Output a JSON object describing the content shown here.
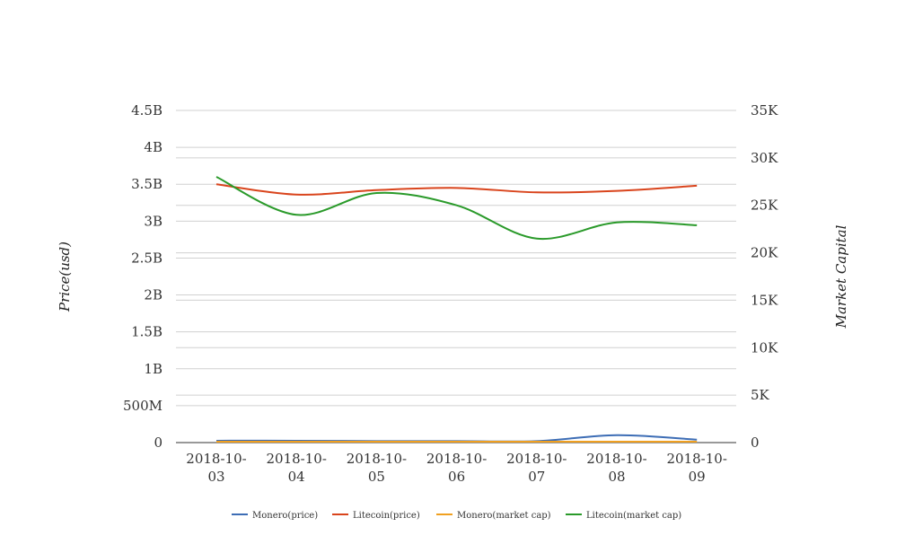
{
  "chart_data": {
    "type": "line",
    "title": "",
    "x": [
      "2018-10-03",
      "2018-10-04",
      "2018-10-05",
      "2018-10-06",
      "2018-10-07",
      "2018-10-08",
      "2018-10-09"
    ],
    "x_tick_lines": [
      [
        "2018-10-",
        "03"
      ],
      [
        "2018-10-",
        "04"
      ],
      [
        "2018-10-",
        "05"
      ],
      [
        "2018-10-",
        "06"
      ],
      [
        "2018-10-",
        "07"
      ],
      [
        "2018-10-",
        "08"
      ],
      [
        "2018-10-",
        "09"
      ]
    ],
    "y_left": {
      "label": "Price(usd)",
      "range": [
        0,
        4500000000
      ],
      "ticks": [
        0,
        500000000,
        1000000000,
        1500000000,
        2000000000,
        2500000000,
        3000000000,
        3500000000,
        4000000000,
        4500000000
      ],
      "tick_labels": [
        "0",
        "500M",
        "1B",
        "1.5B",
        "2B",
        "2.5B",
        "3B",
        "3.5B",
        "4B",
        "4.5B"
      ]
    },
    "y_right": {
      "label": "Market Capital",
      "range": [
        0,
        35000
      ],
      "ticks": [
        0,
        5000,
        10000,
        15000,
        20000,
        25000,
        30000,
        35000
      ],
      "tick_labels": [
        "0",
        "5K",
        "10K",
        "15K",
        "20K",
        "25K",
        "30K",
        "35K"
      ]
    },
    "series": [
      {
        "name": "Monero(price)",
        "axis": "left",
        "color": "#3d6db5",
        "values": [
          25000000,
          25000000,
          20000000,
          20000000,
          20000000,
          100000000,
          40000000
        ]
      },
      {
        "name": "Litecoin(price)",
        "axis": "left",
        "color": "#d9441c",
        "values": [
          3500000000,
          3360000000,
          3420000000,
          3450000000,
          3390000000,
          3410000000,
          3480000000
        ]
      },
      {
        "name": "Monero(market cap)",
        "axis": "right",
        "color": "#f0a020",
        "values": [
          100,
          100,
          100,
          100,
          100,
          100,
          100
        ]
      },
      {
        "name": "Litecoin(market cap)",
        "axis": "right",
        "color": "#2a9a2a",
        "values": [
          28000,
          24000,
          26300,
          25000,
          21500,
          23200,
          22900
        ]
      }
    ],
    "grid": true,
    "legend_position": "bottom"
  }
}
